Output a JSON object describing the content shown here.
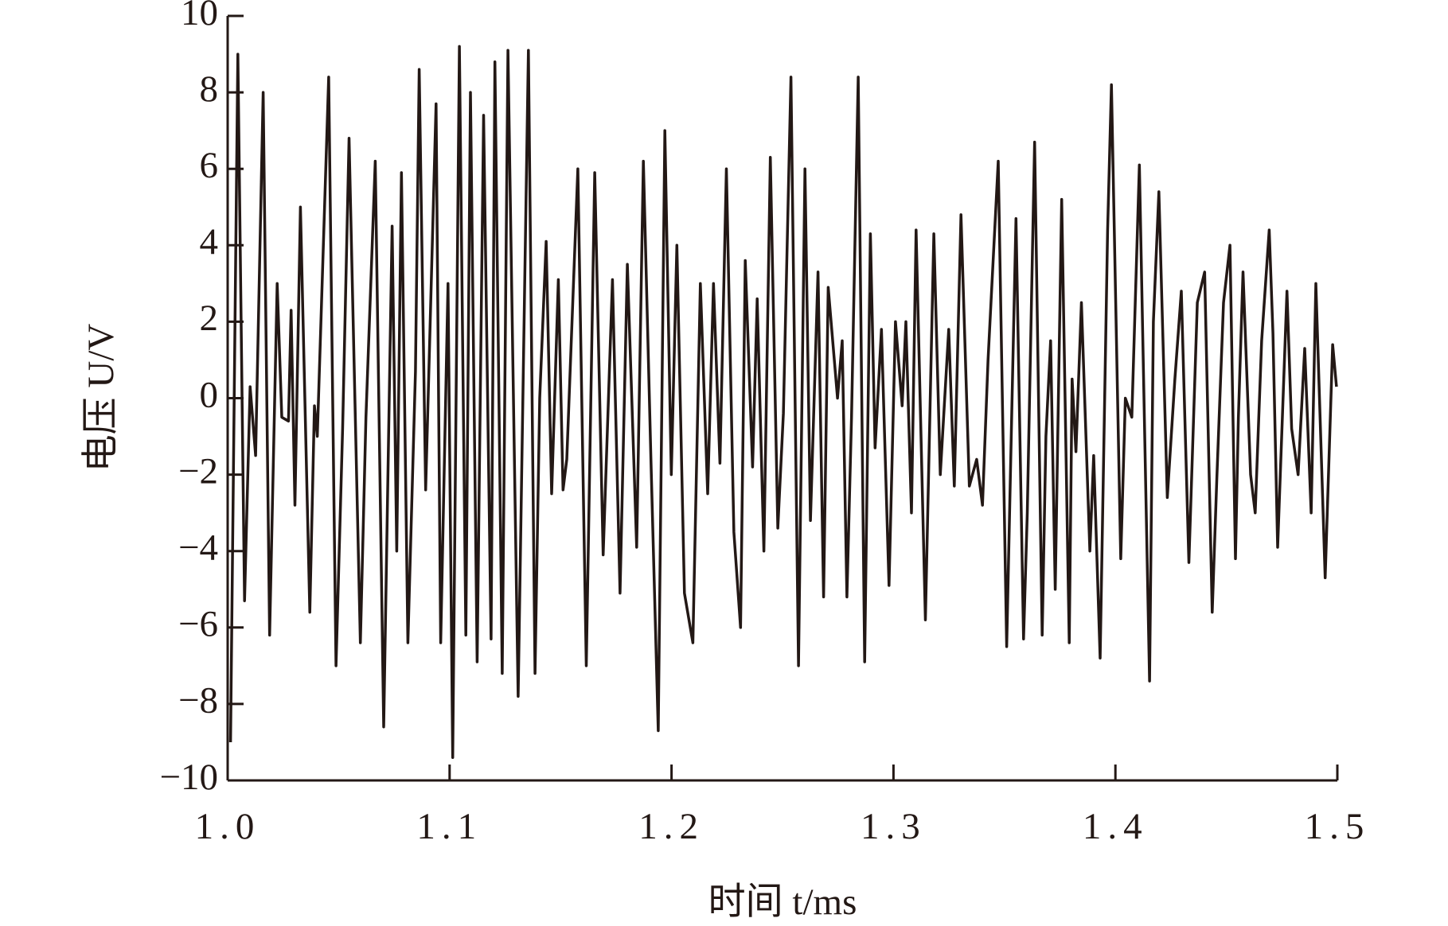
{
  "chart_data": {
    "type": "line",
    "x_label": "时间 t/ms",
    "y_label": "电压 U/V",
    "color": "#231815",
    "xlim": [
      1.0,
      1.5
    ],
    "ylim": [
      -10,
      10
    ],
    "xticks": [
      {
        "value": 1.0,
        "label": "1.0"
      },
      1.1,
      1.2,
      1.3,
      1.4,
      1.5
    ],
    "yticks": [
      {
        "value": -10,
        "label": "−10"
      },
      {
        "value": -8,
        "label": "−8"
      },
      {
        "value": -6,
        "label": "−6"
      },
      {
        "value": -4,
        "label": "−4"
      },
      {
        "value": -2,
        "label": "−2"
      },
      0,
      2,
      4,
      6,
      8,
      10
    ],
    "x": [
      1.0013,
      1.0046,
      1.0076,
      1.0101,
      1.0126,
      1.016,
      1.0189,
      1.0223,
      1.0244,
      1.0274,
      1.0286,
      1.0303,
      1.0328,
      1.037,
      1.0391,
      1.0404,
      1.0455,
      1.0488,
      1.0518,
      1.0547,
      1.0598,
      1.0623,
      1.0665,
      1.0703,
      1.0741,
      1.0762,
      1.0783,
      1.0812,
      1.0846,
      1.0863,
      1.0892,
      1.0909,
      1.0939,
      1.096,
      1.0993,
      1.1014,
      1.1044,
      1.1073,
      1.1094,
      1.1124,
      1.1153,
      1.1187,
      1.1204,
      1.1237,
      1.1263,
      1.1309,
      1.1355,
      1.1385,
      1.1406,
      1.1435,
      1.146,
      1.149,
      1.1511,
      1.1528,
      1.1578,
      1.1616,
      1.1654,
      1.1692,
      1.1734,
      1.1768,
      1.1801,
      1.1843,
      1.1873,
      1.1907,
      1.194,
      1.197,
      1.1999,
      1.2024,
      1.2058,
      1.2096,
      1.213,
      1.2163,
      1.2189,
      1.2218,
      1.2247,
      1.2281,
      1.2311,
      1.2332,
      1.2365,
      1.2386,
      1.2416,
      1.2445,
      1.2479,
      1.2504,
      1.2538,
      1.2572,
      1.2601,
      1.2626,
      1.266,
      1.2685,
      1.2706,
      1.2748,
      1.2769,
      1.279,
      1.2811,
      1.2841,
      1.287,
      1.2896,
      1.2917,
      1.2946,
      1.298,
      1.3009,
      1.3039,
      1.3056,
      1.3081,
      1.3102,
      1.3144,
      1.3182,
      1.3211,
      1.3249,
      1.3274,
      1.3304,
      1.3342,
      1.3375,
      1.3401,
      1.3426,
      1.3472,
      1.351,
      1.3552,
      1.3586,
      1.3603,
      1.3636,
      1.367,
      1.3687,
      1.3708,
      1.3729,
      1.3758,
      1.3792,
      1.3805,
      1.3822,
      1.3847,
      1.3885,
      1.3902,
      1.3931,
      1.3965,
      1.3982,
      1.4024,
      1.4045,
      1.4074,
      1.4108,
      1.4154,
      1.4171,
      1.4196,
      1.4234,
      1.4268,
      1.4297,
      1.4331,
      1.4369,
      1.4402,
      1.4436,
      1.4457,
      1.4487,
      1.4516,
      1.4541,
      1.4554,
      1.4575,
      1.4609,
      1.463,
      1.4659,
      1.4693,
      1.471,
      1.4731,
      1.4773,
      1.4794,
      1.4823,
      1.4853,
      1.4882,
      1.4903,
      1.4945,
      1.4979,
      1.4996
    ],
    "values": [
      -9,
      9,
      -5.3,
      0.3,
      -1.5,
      8,
      -6.2,
      3,
      -0.5,
      -0.6,
      2.3,
      -2.8,
      5,
      -5.6,
      -0.2,
      -1,
      8.4,
      -7,
      -0.8,
      6.8,
      -6.4,
      -0.5,
      6.2,
      -8.6,
      4.5,
      -4,
      5.9,
      -6.4,
      0.7,
      8.6,
      -2.4,
      1.2,
      7.7,
      -6.4,
      3,
      -9.4,
      9.2,
      -6.2,
      8,
      -6.9,
      7.4,
      -6.3,
      8.8,
      -7.2,
      9.1,
      -7.8,
      9.1,
      -7.2,
      0,
      4.1,
      -2.5,
      3.1,
      -2.4,
      -1.6,
      6,
      -7,
      5.9,
      -4.1,
      3.1,
      -5.1,
      3.5,
      -3.9,
      6.2,
      -1.6,
      -8.7,
      7,
      -2,
      4,
      -5.1,
      -6.4,
      3,
      -2.5,
      3,
      -1.7,
      6,
      -3.5,
      -6,
      3.6,
      -1.8,
      2.6,
      -4,
      6.3,
      -3.4,
      -0.4,
      8.4,
      -7,
      6,
      -3.2,
      3.3,
      -5.2,
      2.9,
      0,
      1.5,
      -5.2,
      -0.5,
      8.4,
      -6.9,
      4.3,
      -1.3,
      1.8,
      -4.9,
      2,
      -0.2,
      2,
      -3,
      4.4,
      -5.8,
      4.3,
      -2,
      1.8,
      -2.3,
      4.8,
      -2.3,
      -1.6,
      -2.8,
      1,
      6.2,
      -6.5,
      4.7,
      -6.3,
      -3,
      6.7,
      -6.2,
      -1,
      1.5,
      -5,
      5.2,
      -6.4,
      0.5,
      -1.4,
      2.5,
      -4,
      -1.5,
      -6.8,
      4.4,
      8.2,
      -4.2,
      0,
      -0.5,
      6.1,
      -7.4,
      2,
      5.4,
      -2.6,
      0.5,
      2.8,
      -4.3,
      2.5,
      3.3,
      -5.6,
      -2.1,
      2.5,
      4,
      -4.2,
      -0.5,
      3.3,
      -2,
      -3,
      1.5,
      4.4,
      1.7,
      -3.9,
      2.8,
      -0.8,
      -2,
      1.3,
      -3,
      3,
      -4.7,
      1.4,
      0.3
    ]
  }
}
